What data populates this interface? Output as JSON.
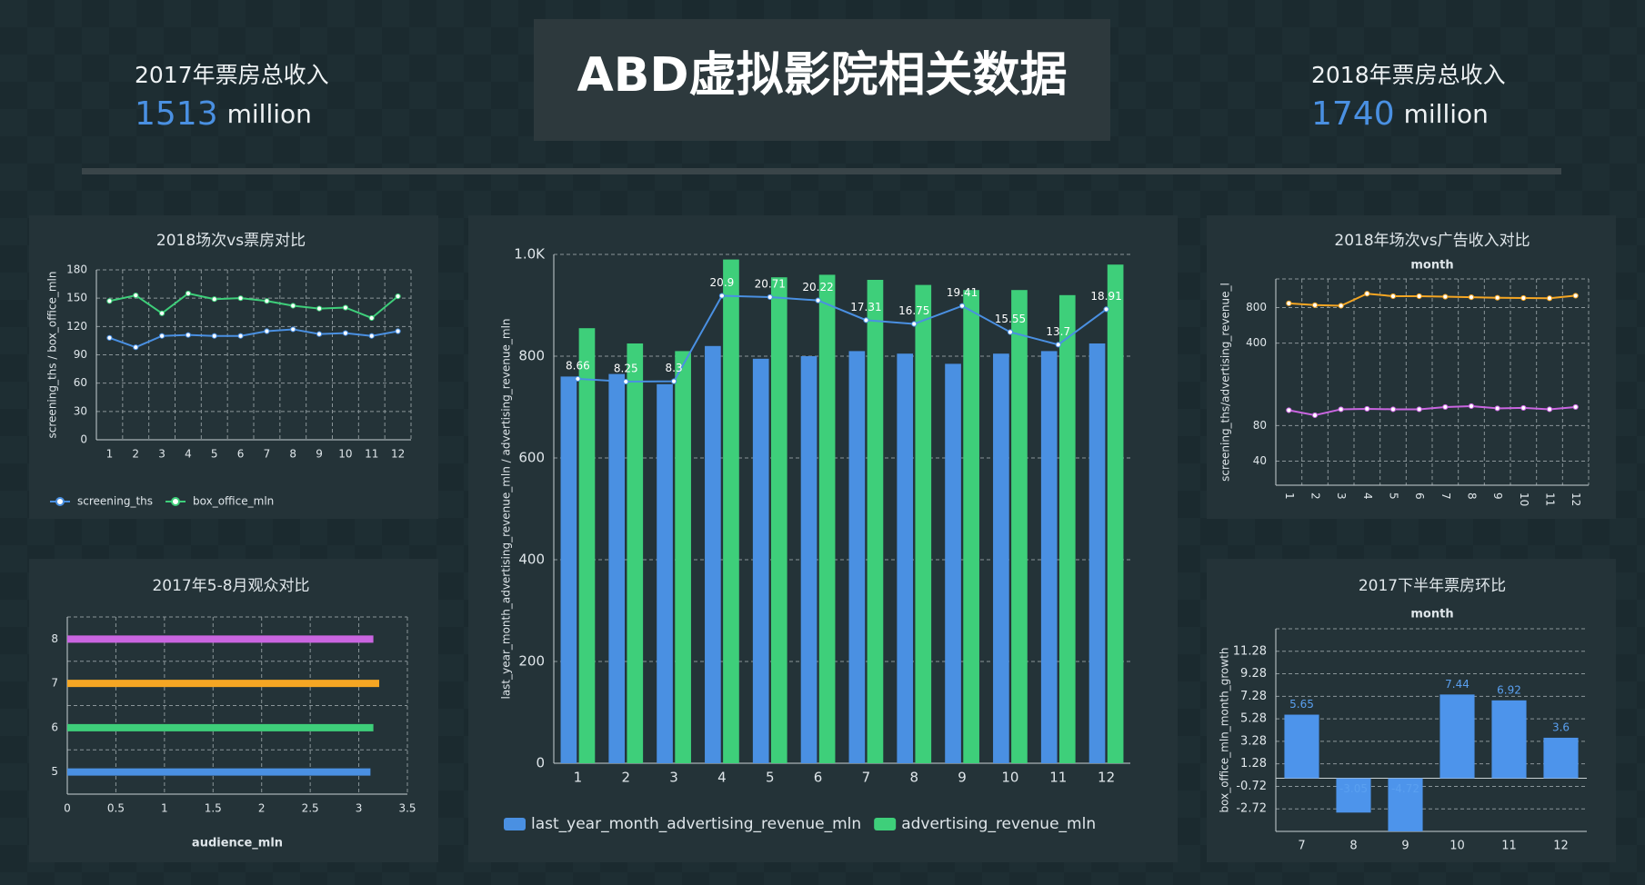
{
  "header": {
    "title": "ABD虚拟影院相关数据",
    "kpis": [
      {
        "label": "2017年票房总收入",
        "value": 1513,
        "unit": "million"
      },
      {
        "label": "2018年票房总收入",
        "value": 1740,
        "unit": "million"
      }
    ]
  },
  "chart_data": [
    {
      "type": "line",
      "title": "2018场次vs票房对比",
      "ylabel": "screening_ths / box_office_mln",
      "categories": [
        "1",
        "2",
        "3",
        "4",
        "5",
        "6",
        "7",
        "8",
        "9",
        "10",
        "11",
        "12"
      ],
      "ylim": [
        0,
        180
      ],
      "yticks": [
        0,
        30,
        60,
        90,
        120,
        150,
        180
      ],
      "grid": true,
      "legend": "bottom-left",
      "series": [
        {
          "name": "screening_ths",
          "color": "#4a90e2",
          "values": [
            108,
            98,
            110,
            111,
            110,
            110,
            115,
            117,
            112,
            113,
            110,
            115
          ]
        },
        {
          "name": "box_office_mln",
          "color": "#3ecf7a",
          "values": [
            147,
            153,
            134,
            155,
            149,
            150,
            147,
            142,
            139,
            140,
            129,
            152
          ]
        }
      ]
    },
    {
      "type": "bar",
      "orientation": "horizontal",
      "title": "2017年5-8月观众对比",
      "xlabel": "audience_mln",
      "categories": [
        "5",
        "6",
        "7",
        "8"
      ],
      "values": [
        3.12,
        3.15,
        3.21,
        3.15
      ],
      "colors": [
        "#4a90e2",
        "#3ecf7a",
        "#f5a623",
        "#c965e0"
      ],
      "xlim": [
        0,
        3.5
      ],
      "xticks": [
        0,
        0.5,
        1,
        1.5,
        2,
        2.5,
        3,
        3.5
      ],
      "grid": true
    },
    {
      "type": "bar",
      "ylabel": "last_year_month_advertising_revenue_mln / advertising_revenue_mln",
      "categories": [
        "1",
        "2",
        "3",
        "4",
        "5",
        "6",
        "7",
        "8",
        "9",
        "10",
        "11",
        "12"
      ],
      "ylim": [
        0,
        1000
      ],
      "yticks": [
        0,
        200,
        400,
        600,
        800,
        {
          "value": 1000,
          "label": "1.0K"
        }
      ],
      "y2lim": [
        -48,
        27
      ],
      "grid": true,
      "legend": "bottom-left",
      "series": [
        {
          "name": "last_year_month_advertising_revenue_mln",
          "color": "#4a90e2",
          "values": [
            760,
            765,
            745,
            820,
            795,
            800,
            810,
            805,
            785,
            805,
            810,
            825
          ]
        },
        {
          "name": "advertising_revenue_mln",
          "color": "#3ecf7a",
          "values": [
            855,
            825,
            810,
            990,
            955,
            960,
            950,
            940,
            930,
            930,
            920,
            980
          ]
        },
        {
          "type": "line",
          "axis": "y2",
          "color": "#4a90e2",
          "data_labels": true,
          "values": [
            8.66,
            8.25,
            8.3,
            20.9,
            20.71,
            20.22,
            17.31,
            16.75,
            19.41,
            15.55,
            13.7,
            18.91
          ]
        }
      ]
    },
    {
      "type": "line",
      "title": "2018年场次vs广告收入对比",
      "xlabel": "month",
      "ylabel": "screening_ths/advertising_revenue_l",
      "categories": [
        "1",
        "2",
        "3",
        "4",
        "5",
        "6",
        "7",
        "8",
        "9",
        "10",
        "11",
        "12"
      ],
      "ylog": true,
      "ylim": [
        25,
        1400
      ],
      "yticks": [
        40,
        80,
        400,
        800
      ],
      "grid": true,
      "series": [
        {
          "color": "#f5a623",
          "values": [
            870,
            840,
            830,
            1050,
            1000,
            1000,
            990,
            980,
            970,
            965,
            960,
            1010
          ]
        },
        {
          "color": "#c965e0",
          "values": [
            108,
            98,
            110,
            111,
            110,
            110,
            115,
            117,
            112,
            113,
            110,
            115
          ]
        }
      ]
    },
    {
      "type": "bar",
      "title": "2017下半年票房环比",
      "xlabel": "month",
      "ylabel": "box_office_mln_month_growth",
      "categories": [
        "7",
        "8",
        "9",
        "10",
        "11",
        "12"
      ],
      "values": [
        5.65,
        -3.05,
        -4.72,
        7.44,
        6.92,
        3.6
      ],
      "color": "#4d94eb",
      "data_labels": true,
      "ylim": [
        -4.72,
        13.28
      ],
      "yticks": [
        -2.72,
        -0.72,
        1.28,
        3.28,
        5.28,
        7.28,
        9.28,
        11.28
      ],
      "grid": true
    }
  ]
}
